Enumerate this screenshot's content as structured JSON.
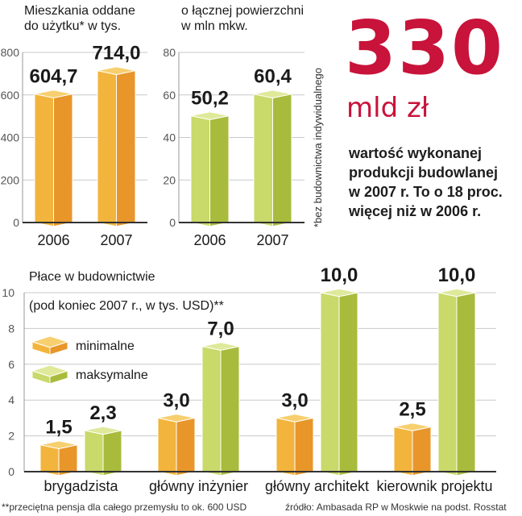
{
  "chart_data": [
    {
      "type": "bar",
      "id": "dwellings",
      "title": "Mieszkania oddane do użytku* w tys.",
      "title_lines": [
        "Mieszkania oddane",
        "do użytku* w tys."
      ],
      "categories": [
        "2006",
        "2007"
      ],
      "values": [
        604.7,
        714.0
      ],
      "value_labels": [
        "604,7",
        "714,0"
      ],
      "yticks": [
        0,
        200,
        400,
        600,
        800
      ],
      "ytick_labels": [
        "0",
        "200",
        "400",
        "600",
        "800"
      ],
      "ylim": [
        0,
        800
      ],
      "grid": true,
      "color": "#f2b43c"
    },
    {
      "type": "bar",
      "id": "area",
      "title": "o łącznej powierzchni w mln mkw.",
      "title_lines": [
        "o łącznej powierzchni",
        "w mln mkw."
      ],
      "categories": [
        "2006",
        "2007"
      ],
      "values": [
        50.2,
        60.4
      ],
      "value_labels": [
        "50,2",
        "60,4"
      ],
      "yticks": [
        0,
        20,
        40,
        60,
        80
      ],
      "ytick_labels": [
        "0",
        "20",
        "40",
        "60",
        "80"
      ],
      "ylim": [
        0,
        80
      ],
      "grid": true,
      "color": "#c9d96a"
    },
    {
      "type": "bar",
      "id": "wages",
      "title": "Płace w budownictwie",
      "subtitle": "(pod koniec 2007 r., w tys. USD)**",
      "categories": [
        "brygadzista",
        "główny inżynier",
        "główny architekt",
        "kierownik projektu"
      ],
      "series": [
        {
          "name": "minimalne",
          "values": [
            1.5,
            3.0,
            3.0,
            2.5
          ],
          "value_labels": [
            "1,5",
            "3,0",
            "3,0",
            "2,5"
          ],
          "color": "#f2b43c"
        },
        {
          "name": "maksymalne",
          "values": [
            2.3,
            7.0,
            10.0,
            10.0
          ],
          "value_labels": [
            "2,3",
            "7,0",
            "10,0",
            "10,0"
          ],
          "color": "#c9d96a"
        }
      ],
      "yticks": [
        0,
        2,
        4,
        6,
        8,
        10
      ],
      "ytick_labels": [
        "0",
        "2",
        "4",
        "6",
        "8",
        "10"
      ],
      "ylim": [
        0,
        10
      ],
      "grid": true,
      "legend": "top-left"
    }
  ],
  "highlight": {
    "number": "330",
    "unit": "mld zł",
    "description_lines": [
      "wartość wykonanej",
      "produkcji budowlanej",
      "w 2007 r. To o 18 proc.",
      "więcej niż w 2006 r."
    ],
    "color": "#c8133a"
  },
  "notes": {
    "vertical_note": "*bez budownictwa indywidualnego",
    "wage_footnote": "**przeciętna pensja dla całego przemysłu to ok. 600 USD",
    "source": "źródło: Ambasada RP w Moskwie na podst. Rosstat"
  },
  "colors": {
    "orange_front": "#f2b43c",
    "orange_side": "#e8962a",
    "orange_top": "#f7cf6e",
    "green_front": "#c9d96a",
    "green_side": "#a9bb3c",
    "green_top": "#dfe99a",
    "grid": "#c8c8c8",
    "axis": "#333333"
  }
}
